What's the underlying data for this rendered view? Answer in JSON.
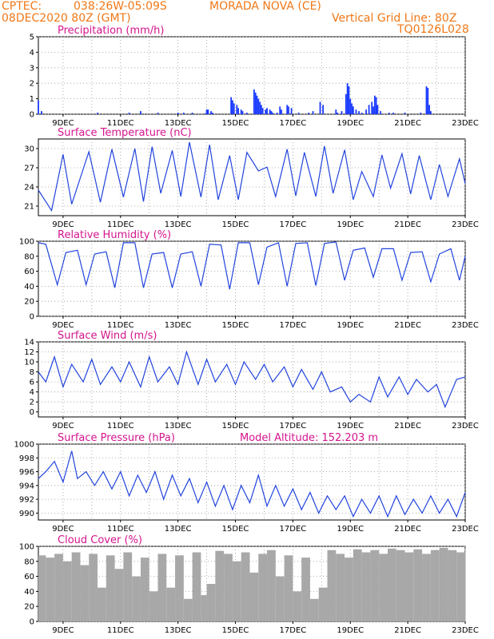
{
  "header": {
    "source": "CPTEC:",
    "coords": "038:26W-05:09S",
    "station": "MORADA NOVA (CE)",
    "run": "08DEC2020 80Z (GMT)",
    "vline": "Vertical Grid Line: 80Z",
    "model": "TQ0126L028"
  },
  "colors": {
    "line": "#2244dd",
    "bar": "#1a3aff",
    "cloud": "#a8a8a8",
    "title": "#d4148e",
    "header": "#f07818"
  },
  "x_labels": [
    "9DEC",
    "11DEC",
    "13DEC",
    "15DEC",
    "17DEC",
    "19DEC",
    "21DEC",
    "23DEC"
  ],
  "chart_data": [
    {
      "type": "bar",
      "title": "Precipitation (mm/h)",
      "ylim": [
        0,
        5
      ],
      "yticks": [
        0,
        1,
        2,
        3,
        4,
        5
      ],
      "x_days": [
        8.14,
        8.25,
        10.2,
        11.3,
        11.7,
        12.3,
        13.0,
        13.2,
        13.5,
        13.95,
        14.0,
        14.05,
        14.15,
        14.2,
        14.85,
        14.9,
        14.95,
        15.05,
        15.1,
        15.2,
        15.25,
        15.4,
        15.65,
        15.7,
        15.75,
        15.8,
        15.85,
        15.9,
        15.95,
        16.05,
        16.1,
        16.2,
        16.25,
        16.3,
        16.45,
        16.55,
        16.6,
        16.8,
        16.85,
        16.95,
        17.2,
        17.55,
        17.7,
        17.95,
        18.05,
        18.5,
        18.55,
        18.7,
        18.85,
        18.9,
        18.95,
        19.0,
        19.05,
        19.1,
        19.2,
        19.3,
        19.4,
        19.55,
        19.65,
        19.75,
        19.8,
        19.85,
        19.9,
        19.95,
        20.05,
        20.35,
        20.5,
        20.9,
        21.45,
        21.65,
        21.7,
        21.75,
        21.8
      ],
      "values": [
        0.9,
        0.2,
        0.1,
        0.1,
        0.2,
        0.1,
        0.1,
        0.1,
        0.1,
        0.05,
        0.3,
        0.3,
        0.2,
        0.1,
        1.1,
        0.9,
        0.7,
        0.6,
        0.4,
        0.3,
        0.2,
        0.1,
        1.6,
        1.4,
        1.2,
        1.0,
        0.8,
        0.6,
        0.4,
        0.3,
        0.4,
        0.3,
        0.2,
        0.1,
        0.1,
        0.5,
        0.3,
        0.6,
        0.5,
        0.4,
        0.1,
        0.1,
        0.2,
        0.8,
        0.6,
        0.3,
        0.1,
        0.2,
        1.3,
        2.0,
        1.8,
        1.0,
        0.7,
        0.5,
        0.3,
        0.2,
        0.1,
        0.3,
        0.6,
        0.8,
        0.5,
        1.2,
        1.1,
        0.6,
        0.2,
        0.1,
        0.1,
        0.1,
        0.1,
        1.8,
        1.7,
        0.6,
        0.2
      ]
    },
    {
      "type": "line",
      "title": "Surface Temperature (nC)",
      "ylim": [
        19.5,
        31.5
      ],
      "yticks": [
        21,
        24,
        27,
        30
      ],
      "x_days": [
        8.14,
        8.6,
        9.0,
        9.3,
        9.9,
        10.3,
        10.7,
        11.1,
        11.5,
        11.8,
        12.1,
        12.4,
        12.8,
        13.1,
        13.4,
        13.8,
        14.1,
        14.4,
        14.8,
        15.1,
        15.4,
        15.8,
        16.1,
        16.4,
        16.8,
        17.1,
        17.4,
        17.8,
        18.1,
        18.4,
        18.8,
        19.1,
        19.4,
        19.8,
        20.1,
        20.4,
        20.8,
        21.1,
        21.4,
        21.8,
        22.1,
        22.4,
        22.8,
        23.0
      ],
      "values": [
        23.5,
        20.3,
        29.1,
        21.3,
        29.5,
        21.6,
        29.9,
        22.4,
        30.0,
        21.7,
        30.3,
        23.0,
        29.7,
        22.5,
        31.0,
        22.4,
        30.6,
        22.0,
        28.9,
        22.0,
        29.4,
        26.5,
        27.1,
        22.5,
        29.9,
        22.6,
        29.4,
        22.5,
        30.4,
        23.0,
        29.8,
        22.0,
        26.4,
        22.5,
        29.0,
        23.8,
        29.2,
        22.9,
        28.9,
        22.0,
        27.5,
        22.5,
        28.4,
        24.5
      ]
    },
    {
      "type": "line",
      "title": "Relative Humidity (%)",
      "ylim": [
        0,
        100
      ],
      "yticks": [
        0,
        20,
        40,
        60,
        80,
        100
      ],
      "x_days": [
        8.14,
        8.4,
        8.8,
        9.1,
        9.5,
        9.8,
        10.1,
        10.5,
        10.8,
        11.1,
        11.5,
        11.8,
        12.1,
        12.5,
        12.8,
        13.1,
        13.5,
        13.8,
        14.1,
        14.5,
        14.8,
        15.1,
        15.5,
        15.8,
        16.1,
        16.5,
        16.8,
        17.1,
        17.5,
        17.8,
        18.1,
        18.5,
        18.8,
        19.1,
        19.5,
        19.8,
        20.1,
        20.5,
        20.8,
        21.1,
        21.5,
        21.8,
        22.1,
        22.5,
        22.8,
        23.0
      ],
      "values": [
        98,
        96,
        42,
        85,
        88,
        42,
        83,
        86,
        38,
        98,
        98,
        38,
        83,
        85,
        38,
        83,
        86,
        40,
        96,
        95,
        36,
        98,
        98,
        42,
        92,
        98,
        40,
        97,
        98,
        41,
        97,
        99,
        48,
        88,
        91,
        52,
        90,
        90,
        48,
        85,
        86,
        46,
        83,
        90,
        48,
        80
      ]
    },
    {
      "type": "line",
      "title": "Surface Wind (m/s)",
      "ylim": [
        -1,
        14
      ],
      "yticks": [
        0,
        2,
        4,
        6,
        8,
        10,
        12,
        14
      ],
      "x_days": [
        8.14,
        8.4,
        8.7,
        9.0,
        9.3,
        9.7,
        10.0,
        10.3,
        10.7,
        11.0,
        11.3,
        11.7,
        12.0,
        12.3,
        12.7,
        13.0,
        13.3,
        13.7,
        14.0,
        14.3,
        14.7,
        15.0,
        15.3,
        15.7,
        16.0,
        16.3,
        16.7,
        17.0,
        17.3,
        17.7,
        18.0,
        18.3,
        18.7,
        19.0,
        19.3,
        19.7,
        20.0,
        20.3,
        20.7,
        21.0,
        21.3,
        21.7,
        22.0,
        22.3,
        22.7,
        23.0
      ],
      "values": [
        8.0,
        6.0,
        11.0,
        5.0,
        9.5,
        6.0,
        10.5,
        5.5,
        9.0,
        6.0,
        10.0,
        5.0,
        11.0,
        6.0,
        9.0,
        5.5,
        12.0,
        5.5,
        10.5,
        6.0,
        9.5,
        5.5,
        10.0,
        6.5,
        9.5,
        6.0,
        9.0,
        5.0,
        8.5,
        4.5,
        8.0,
        4.0,
        5.0,
        2.0,
        3.5,
        2.0,
        7.0,
        3.0,
        7.0,
        3.5,
        6.5,
        4.0,
        5.5,
        1.0,
        6.5,
        7.0
      ]
    },
    {
      "type": "line",
      "title": "Surface Pressure (hPa)",
      "annotation": "Model Altitude: 152.203 m",
      "ylim": [
        989,
        1000
      ],
      "yticks": [
        990,
        992,
        994,
        996,
        998,
        1000
      ],
      "x_days": [
        8.14,
        8.4,
        8.7,
        9.0,
        9.3,
        9.5,
        9.8,
        10.1,
        10.4,
        10.7,
        11.0,
        11.3,
        11.6,
        11.9,
        12.2,
        12.5,
        12.8,
        13.1,
        13.4,
        13.7,
        14.0,
        14.3,
        14.6,
        14.9,
        15.2,
        15.5,
        15.8,
        16.1,
        16.4,
        16.7,
        17.0,
        17.3,
        17.6,
        17.9,
        18.2,
        18.5,
        18.8,
        19.1,
        19.4,
        19.7,
        20.0,
        20.3,
        20.6,
        20.9,
        21.2,
        21.5,
        21.8,
        22.1,
        22.4,
        22.7,
        23.0
      ],
      "values": [
        995,
        996,
        997.5,
        994.5,
        999,
        995,
        996,
        994,
        996,
        993.5,
        996,
        992.5,
        995.5,
        993,
        996,
        992,
        995.5,
        992.5,
        995,
        991.5,
        994.5,
        991,
        994,
        990.5,
        994,
        991.5,
        995.5,
        991,
        994,
        991,
        993.5,
        990.5,
        993,
        990,
        992.5,
        990.5,
        992.5,
        989.5,
        992,
        990,
        992.5,
        989.5,
        992.5,
        989.8,
        992,
        990,
        992.5,
        990,
        992,
        989.5,
        993
      ]
    },
    {
      "type": "area",
      "title": "Cloud Cover (%)",
      "ylim": [
        0,
        100
      ],
      "yticks": [
        0,
        20,
        40,
        60,
        80,
        100
      ],
      "x_days": [
        8.14,
        8.4,
        8.7,
        9.0,
        9.3,
        9.6,
        9.9,
        10.2,
        10.5,
        10.8,
        11.1,
        11.4,
        11.7,
        12.0,
        12.3,
        12.6,
        12.9,
        13.2,
        13.5,
        13.8,
        14.0,
        14.3,
        14.6,
        14.9,
        15.2,
        15.5,
        15.8,
        16.1,
        16.4,
        16.7,
        17.0,
        17.3,
        17.6,
        17.9,
        18.2,
        18.5,
        18.8,
        19.1,
        19.4,
        19.7,
        20.0,
        20.3,
        20.6,
        20.9,
        21.2,
        21.5,
        21.8,
        22.1,
        22.4,
        22.7,
        23.0
      ],
      "values": [
        88,
        85,
        90,
        80,
        92,
        75,
        90,
        45,
        88,
        70,
        92,
        60,
        85,
        40,
        90,
        45,
        88,
        30,
        92,
        35,
        50,
        94,
        90,
        80,
        92,
        65,
        90,
        95,
        60,
        88,
        40,
        85,
        30,
        45,
        95,
        90,
        85,
        96,
        92,
        95,
        90,
        97,
        95,
        92,
        96,
        90,
        95,
        98,
        95,
        92,
        98
      ]
    }
  ]
}
